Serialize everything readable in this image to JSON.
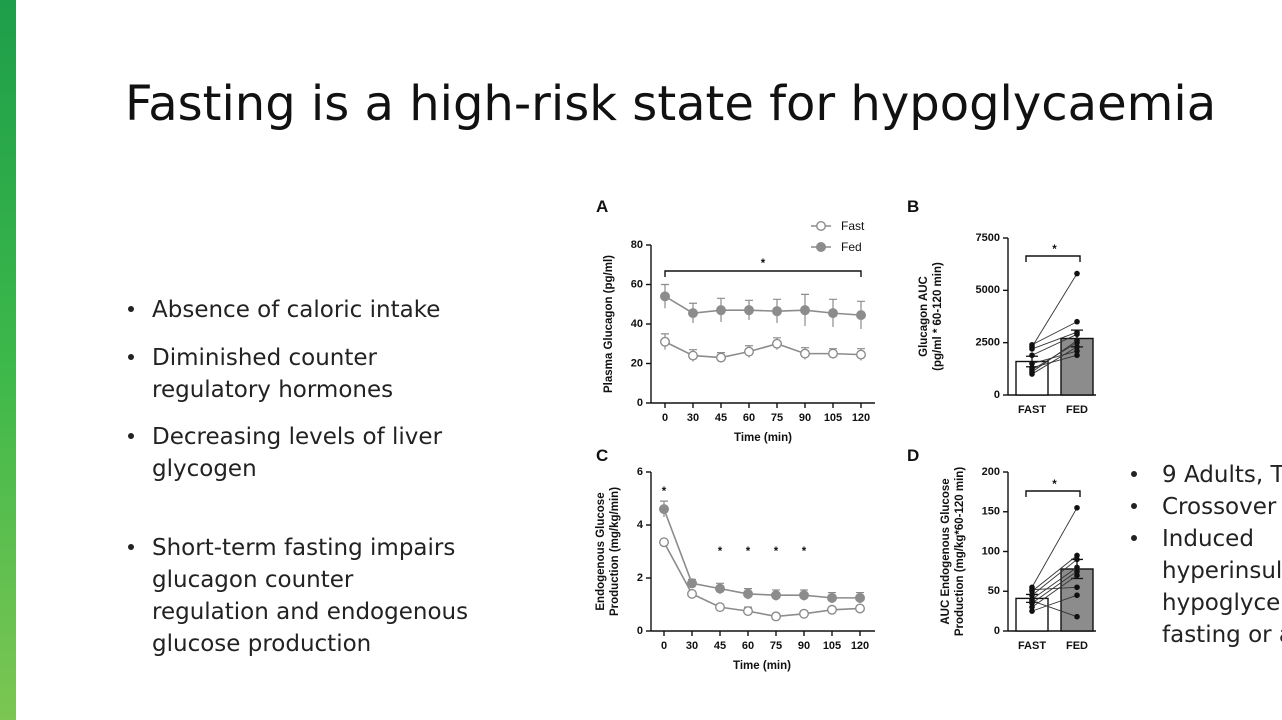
{
  "title": "Fasting is a high-risk state for hypoglycaemia",
  "bullets": [
    [
      "Absence of caloric intake"
    ],
    [
      "Diminished counter",
      "regulatory hormones"
    ],
    [
      "Decreasing levels of liver",
      "glycogen"
    ],
    [
      "Short-term fasting impairs",
      "glucagon counter",
      "regulation and endogenous",
      "glucose production"
    ]
  ],
  "side_bullets": [
    [
      "9 Adults, T"
    ],
    [
      "Crossover"
    ],
    [
      "Induced",
      "hyperinsul",
      "hypoglycer",
      "fasting or a"
    ]
  ],
  "chart_data": [
    {
      "type": "line",
      "panel": "A",
      "categories": [
        "0",
        "30",
        "45",
        "60",
        "75",
        "90",
        "105",
        "120"
      ],
      "xlabel": "Time (min)",
      "ylabel": [
        "Plasma Glucagon (pg/ml)"
      ],
      "ylim": [
        0,
        80
      ],
      "yticks": [
        0,
        20,
        40,
        60,
        80
      ],
      "legend": "top-right",
      "annotation": "*",
      "edge_color": "#8c8c8c",
      "series": [
        {
          "name": "Fast",
          "color": "#ffffff",
          "values": [
            31,
            24,
            23,
            26,
            30,
            25,
            25,
            24.5
          ],
          "errors": [
            4,
            3,
            2.5,
            3,
            3,
            3,
            2.5,
            3
          ]
        },
        {
          "name": "Fed",
          "color": "#8c8c8c",
          "values": [
            54,
            45.5,
            47,
            47,
            46.5,
            47,
            45.5,
            44.5
          ],
          "errors": [
            6,
            5,
            6,
            5,
            6,
            8,
            7,
            7
          ]
        }
      ]
    },
    {
      "type": "bar",
      "panel": "B",
      "categories": [
        "FAST",
        "FED"
      ],
      "ylabel": [
        "Glucagon AUC",
        "(pg/ml * 60-120 min)"
      ],
      "ylim": [
        0,
        7500
      ],
      "yticks": [
        0,
        2500,
        5000,
        7500
      ],
      "annotation": "*",
      "colors": [
        "#ffffff",
        "#8c8c8c"
      ],
      "values": [
        1600,
        2700
      ],
      "errors": [
        250,
        400
      ],
      "individual": [
        [
          2300,
          5800
        ],
        [
          2400,
          3500
        ],
        [
          2200,
          3000
        ],
        [
          1900,
          2900
        ],
        [
          1200,
          2500
        ],
        [
          1000,
          2300
        ],
        [
          1500,
          2100
        ],
        [
          1300,
          1900
        ],
        [
          1100,
          2600
        ]
      ]
    },
    {
      "type": "line",
      "panel": "C",
      "categories": [
        "0",
        "30",
        "45",
        "60",
        "75",
        "90",
        "105",
        "120"
      ],
      "xlabel": "Time (min)",
      "ylabel": [
        "Endogenous Glucose",
        "Production (mg/kg/min)"
      ],
      "ylim": [
        0,
        6
      ],
      "yticks": [
        0,
        2,
        4,
        6
      ],
      "edge_color": "#8c8c8c",
      "significance": [
        "*",
        null,
        "*",
        "*",
        "*",
        "*",
        null,
        null
      ],
      "series": [
        {
          "name": "Fast",
          "color": "#ffffff",
          "values": [
            3.35,
            1.4,
            0.9,
            0.75,
            0.55,
            0.65,
            0.8,
            0.85
          ],
          "errors": [
            0.1,
            0.05,
            0.1,
            0.15,
            0.1,
            0.1,
            0.1,
            0.1
          ]
        },
        {
          "name": "Fed",
          "color": "#8c8c8c",
          "values": [
            4.6,
            1.8,
            1.6,
            1.4,
            1.35,
            1.35,
            1.25,
            1.25
          ],
          "errors": [
            0.3,
            0.15,
            0.2,
            0.2,
            0.2,
            0.2,
            0.2,
            0.2
          ]
        }
      ]
    },
    {
      "type": "bar",
      "panel": "D",
      "categories": [
        "FAST",
        "FED"
      ],
      "ylabel": [
        "AUC Endogenous Glucose",
        "Production (mg/kg*60-120 min)"
      ],
      "ylim": [
        0,
        200
      ],
      "yticks": [
        0,
        50,
        100,
        150,
        200
      ],
      "annotation": "*",
      "colors": [
        "#ffffff",
        "#8c8c8c"
      ],
      "values": [
        41,
        78
      ],
      "errors": [
        5,
        12
      ],
      "individual": [
        [
          55,
          155
        ],
        [
          50,
          95
        ],
        [
          45,
          90
        ],
        [
          40,
          80
        ],
        [
          35,
          75
        ],
        [
          30,
          70
        ],
        [
          52,
          55
        ],
        [
          25,
          45
        ],
        [
          38,
          18
        ]
      ]
    }
  ]
}
